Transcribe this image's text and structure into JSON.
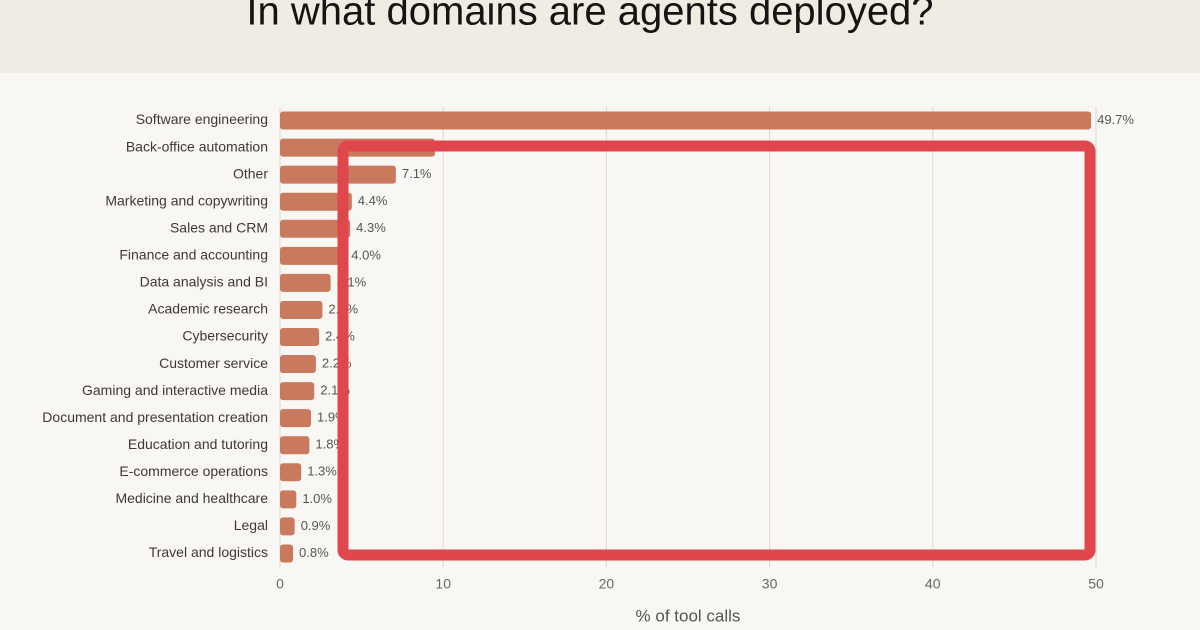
{
  "chart_data": {
    "type": "bar",
    "orientation": "horizontal",
    "title": "In what domains are agents deployed?",
    "x_label": "% of tool calls",
    "categories": [
      "Software engineering",
      "Back-office automation",
      "Other",
      "Marketing and copywriting",
      "Sales and CRM",
      "Finance and accounting",
      "Data analysis and BI",
      "Academic research",
      "Cybersecurity",
      "Customer service",
      "Gaming and interactive media",
      "Document and presentation creation",
      "Education and tutoring",
      "E-commerce operations",
      "Medicine and healthcare",
      "Legal",
      "Travel and logistics"
    ],
    "values": [
      49.7,
      9.5,
      7.1,
      4.4,
      4.3,
      4.0,
      3.1,
      2.6,
      2.4,
      2.2,
      2.1,
      1.9,
      1.8,
      1.3,
      1.0,
      0.9,
      0.8
    ],
    "value_labels": [
      "49.7%",
      "9.5%",
      "7.1%",
      "4.4%",
      "4.3%",
      "4.0%",
      "3.1%",
      "2.6%",
      "2.4%",
      "2.2%",
      "2.1%",
      "1.9%",
      "1.8%",
      "1.3%",
      "1.0%",
      "0.9%",
      "0.8%"
    ],
    "color": "#c97a5e",
    "xlim": [
      0,
      50
    ],
    "xticks": [
      0,
      10,
      20,
      30,
      40,
      50
    ],
    "grid": true
  }
}
